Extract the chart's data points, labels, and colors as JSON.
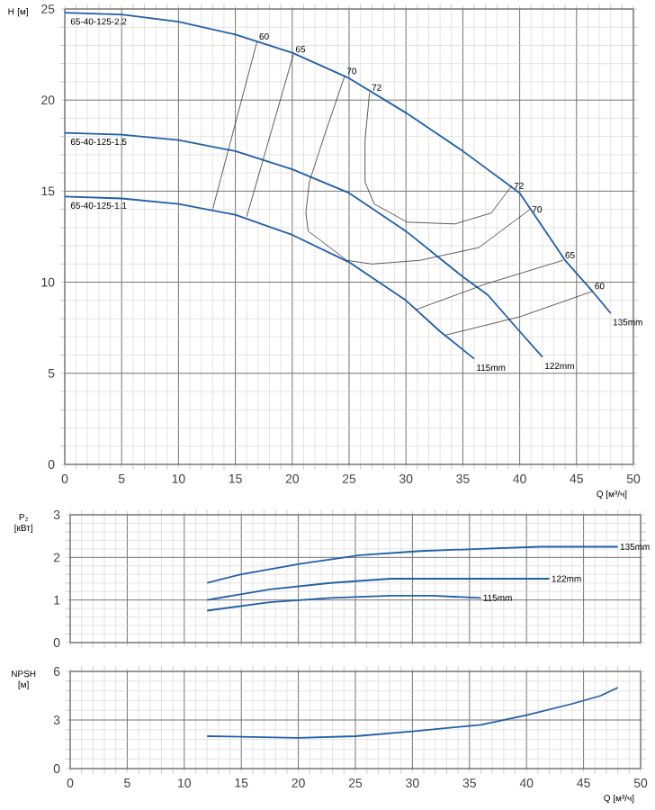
{
  "chart_data": [
    {
      "type": "line",
      "ylabel": "H [м]",
      "xlabel": "Q [м³/ч]",
      "xlim": [
        0,
        50
      ],
      "ylim": [
        0,
        25
      ],
      "xticks": [
        0,
        5,
        10,
        15,
        20,
        25,
        30,
        35,
        40,
        45,
        50
      ],
      "yticks": [
        0,
        5,
        10,
        15,
        20,
        25
      ],
      "grid": true,
      "series": [
        {
          "name": "135mm",
          "color": "#1f5fa8",
          "x": [
            0,
            5,
            10,
            15,
            20,
            25,
            30,
            35,
            40,
            44,
            46.4,
            48
          ],
          "values": [
            24.8,
            24.7,
            24.3,
            23.6,
            22.6,
            21.2,
            19.3,
            17.2,
            14.9,
            11.2,
            9.5,
            8.3
          ]
        },
        {
          "name": "122mm",
          "color": "#1f5fa8",
          "x": [
            0,
            5,
            10,
            15,
            20,
            25,
            30,
            35,
            37.2,
            40,
            42
          ],
          "values": [
            18.2,
            18.1,
            17.8,
            17.2,
            16.2,
            14.9,
            12.8,
            10.3,
            9.3,
            7.3,
            5.9
          ]
        },
        {
          "name": "115mm",
          "color": "#1f5fa8",
          "x": [
            0,
            5,
            10,
            15,
            20,
            25,
            30,
            33,
            36
          ],
          "values": [
            14.7,
            14.6,
            14.3,
            13.7,
            12.6,
            11.1,
            9.0,
            7.3,
            5.8
          ]
        },
        {
          "name": "60",
          "color": "#333333",
          "x": [
            16.9,
            13
          ],
          "values": [
            23.2,
            14.0
          ]
        },
        {
          "name": "65",
          "color": "#333333",
          "x": [
            20.1,
            16
          ],
          "values": [
            22.5,
            13.6
          ]
        },
        {
          "name": "70",
          "color": "#333333",
          "x": [
            24.6,
            22.8,
            21.5,
            21.2,
            21.4,
            22.7,
            24.8,
            27,
            31.2,
            36.4,
            40.9
          ],
          "values": [
            21.3,
            18.0,
            15.5,
            13.8,
            12.8,
            12.2,
            11.2,
            11.0,
            11.2,
            11.9,
            14.0
          ]
        },
        {
          "name": "72",
          "color": "#333333",
          "x": [
            26.8,
            26.4,
            26.4,
            27.2,
            30.1,
            34.3,
            37.5,
            39.3
          ],
          "values": [
            20.4,
            17.8,
            15.5,
            14.3,
            13.3,
            13.2,
            13.8,
            15.3
          ]
        },
        {
          "name": "65",
          "color": "#333333",
          "x": [
            43.8,
            37,
            30.9
          ],
          "values": [
            11.2,
            9.9,
            8.5
          ]
        },
        {
          "name": "60",
          "color": "#333333",
          "x": [
            46.4,
            40,
            33.5
          ],
          "values": [
            9.5,
            8.1,
            7.1
          ]
        }
      ],
      "annotations": [
        "65-40-125-2.2",
        "65-40-125-1.5",
        "65-40-125-1.1"
      ]
    },
    {
      "type": "line",
      "ylabel": "P₂ [кВт]",
      "xlim": [
        0,
        50
      ],
      "ylim": [
        0,
        3
      ],
      "xticks": [
        0,
        5,
        10,
        15,
        20,
        25,
        30,
        35,
        40,
        45,
        50
      ],
      "yticks": [
        0,
        1,
        2,
        3
      ],
      "grid": true,
      "tick_labels": "y",
      "series": [
        {
          "name": "135mm",
          "color": "#1f5fa8",
          "x": [
            12,
            14.9,
            20.2,
            25.4,
            30.7,
            35.9,
            41.2,
            48
          ],
          "values": [
            1.4,
            1.6,
            1.85,
            2.05,
            2.15,
            2.2,
            2.25,
            2.25
          ]
        },
        {
          "name": "122mm",
          "color": "#1f5fa8",
          "x": [
            12,
            17.5,
            22.8,
            28.1,
            33.3,
            42
          ],
          "values": [
            1.0,
            1.25,
            1.4,
            1.5,
            1.5,
            1.5
          ]
        },
        {
          "name": "115mm",
          "color": "#1f5fa8",
          "x": [
            12,
            17.5,
            22.8,
            28.1,
            31.7,
            36
          ],
          "values": [
            0.75,
            0.95,
            1.05,
            1.1,
            1.1,
            1.05
          ]
        }
      ]
    },
    {
      "type": "line",
      "ylabel": "NPSH [м]",
      "xlabel": "Q [м³/ч]",
      "xlim": [
        0,
        50
      ],
      "ylim": [
        0,
        6
      ],
      "xticks": [
        0,
        5,
        10,
        15,
        20,
        25,
        30,
        35,
        40,
        45,
        50
      ],
      "yticks": [
        0,
        3,
        6
      ],
      "grid": true,
      "series": [
        {
          "color": "#1f5fa8",
          "x": [
            12,
            20,
            25,
            30,
            36,
            40,
            44,
            46.5,
            48
          ],
          "values": [
            2.0,
            1.9,
            2.0,
            2.3,
            2.7,
            3.3,
            4.0,
            4.5,
            5.0
          ]
        }
      ]
    }
  ]
}
